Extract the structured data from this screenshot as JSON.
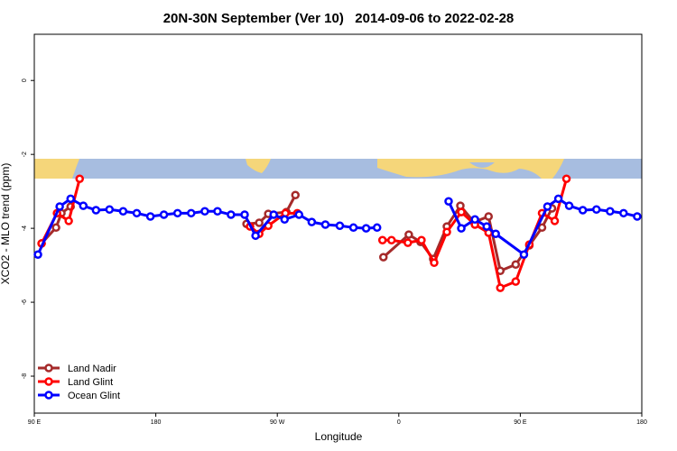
{
  "chart_data": {
    "type": "line",
    "title": "20N-30N September (Ver 10)   2014-09-06 to 2022-02-28",
    "x_label": "Longitude",
    "y_label": "XCO2 - MLO trend (ppm)",
    "xlim": [
      90,
      540
    ],
    "ylim": [
      -9,
      1.25
    ],
    "xticks": [
      {
        "value": 90,
        "label": "90 E"
      },
      180,
      {
        "value": 270,
        "label": "90 W"
      },
      {
        "value": 360,
        "label": "0"
      },
      {
        "value": 450,
        "label": "90 E"
      },
      {
        "value": 540,
        "label": "180"
      }
    ],
    "yticks": [
      -8,
      -6,
      -4,
      -2,
      0
    ],
    "legend": "bottom-left",
    "series": [
      {
        "name": "Land Nadir",
        "color": "#a52a2a",
        "x": [
          95.4,
          106.1,
          110.1,
          116.9,
          null,
          247.2,
          256.6,
          263.3,
          276.7,
          283.4,
          null,
          348.6,
          367.4,
          376.1,
          385.5,
          395.6,
          405.6,
          415.7,
          426.5,
          435.2,
          446.6,
          456.7,
          466.1,
          473.5
        ],
        "values": [
          -4.41,
          -3.98,
          -3.59,
          -3.41,
          null,
          -3.88,
          -3.85,
          -3.61,
          -3.56,
          -3.1,
          null,
          -4.78,
          -4.17,
          -4.37,
          -4.83,
          -3.95,
          -3.39,
          -3.83,
          -3.68,
          -5.15,
          -4.98,
          -4.46,
          -3.98,
          -3.46
        ]
      },
      {
        "name": "Land Glint",
        "color": "#ff0000",
        "x": [
          95.4,
          106.8,
          115.5,
          123.6,
          null,
          249.8,
          256.6,
          263.3,
          276.0,
          284.8,
          null,
          347.9,
          354.6,
          366.7,
          376.8,
          386.2,
          395.6,
          406.3,
          416.4,
          426.5,
          435.2,
          446.6,
          456.7,
          466.1,
          475.5,
          484.2
        ],
        "values": [
          -4.41,
          -3.59,
          -3.8,
          -2.66,
          null,
          -3.95,
          -4.15,
          -3.93,
          -3.59,
          -3.59,
          null,
          -4.32,
          -4.32,
          -4.39,
          -4.32,
          -4.93,
          -4.1,
          -3.56,
          -3.9,
          -4.12,
          -5.61,
          -5.44,
          -4.44,
          -3.59,
          -3.8,
          -2.66
        ]
      },
      {
        "name": "Ocean Glint",
        "color": "#0000ff",
        "x": [
          92.7,
          108.8,
          116.9,
          126.3,
          135.7,
          145.7,
          155.8,
          165.9,
          176.0,
          186.0,
          196.1,
          206.2,
          216.3,
          225.7,
          235.7,
          245.8,
          253.9,
          267.3,
          275.4,
          286.1,
          295.5,
          305.6,
          316.3,
          326.4,
          335.8,
          343.9,
          null,
          396.9,
          406.3,
          416.4,
          425.1,
          431.8,
          452.7,
          470.1,
          478.2,
          486.2,
          496.3,
          506.4,
          516.5,
          526.5,
          536.6
        ],
        "values": [
          -4.71,
          -3.41,
          -3.2,
          -3.39,
          -3.51,
          -3.49,
          -3.54,
          -3.59,
          -3.68,
          -3.63,
          -3.59,
          -3.59,
          -3.54,
          -3.54,
          -3.63,
          -3.63,
          -4.2,
          -3.63,
          -3.76,
          -3.63,
          -3.83,
          -3.9,
          -3.93,
          -3.98,
          -4.0,
          -3.98,
          null,
          -3.27,
          -4.0,
          -3.76,
          -3.95,
          -4.15,
          -4.71,
          -3.41,
          -3.2,
          -3.39,
          -3.51,
          -3.49,
          -3.54,
          -3.59,
          -3.68
        ]
      }
    ]
  }
}
